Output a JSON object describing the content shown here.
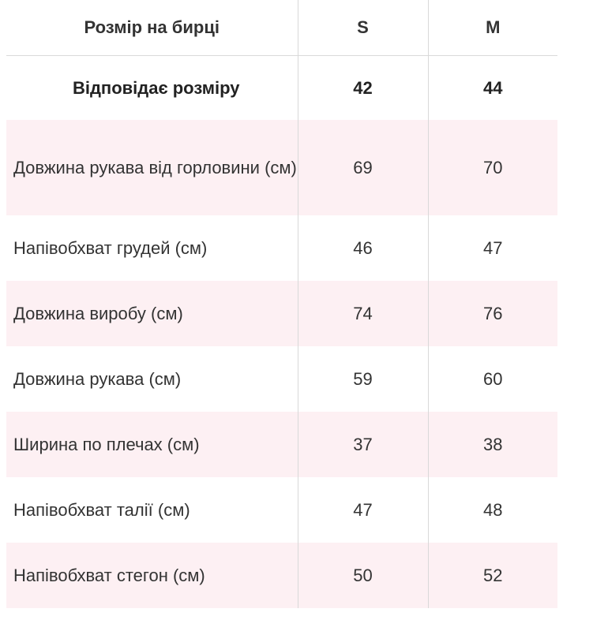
{
  "header": {
    "label": "Розмір на бирці",
    "sizes": [
      "S",
      "M"
    ]
  },
  "corresponds": {
    "label": "Відповідає розміру",
    "values": [
      "42",
      "44"
    ]
  },
  "rows": [
    {
      "label": "Довжина рукава від горловини (см)",
      "values": [
        "69",
        "70"
      ]
    },
    {
      "label": "Напівобхват грудей (см)",
      "values": [
        "46",
        "47"
      ]
    },
    {
      "label": "Довжина виробу (см)",
      "values": [
        "74",
        "76"
      ]
    },
    {
      "label": "Довжина рукава (см)",
      "values": [
        "59",
        "60"
      ]
    },
    {
      "label": "Ширина по плечах (см)",
      "values": [
        "37",
        "38"
      ]
    },
    {
      "label": "Напівобхват талії (см)",
      "values": [
        "47",
        "48"
      ]
    },
    {
      "label": "Напівобхват стегон (см)",
      "values": [
        "50",
        "52"
      ]
    }
  ],
  "colors": {
    "stripe": "#fdf0f3",
    "divider": "#d9d9d9",
    "text": "#333333"
  }
}
